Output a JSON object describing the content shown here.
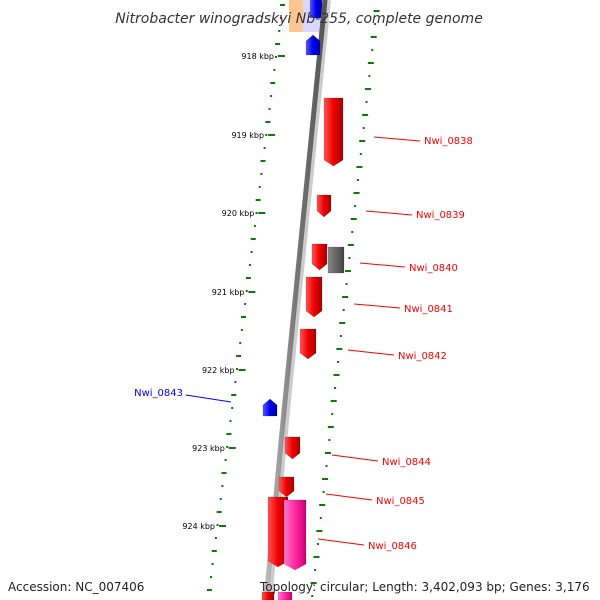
{
  "title": "Nitrobacter winogradskyi Nb-255, complete genome",
  "footer": {
    "accession": "Accession: NC_007406",
    "topology": "Topology: circular; Length: 3,402,093 bp; Genes: 3,176"
  },
  "colors": {
    "forward_gene": "#ff0000",
    "reverse_gene": "#0000ff",
    "gc_dots": "#0a7a0a",
    "backbone": "#808080",
    "hypothetical": "#606060",
    "rna": "#ff3399",
    "orange_feature": "#ff9933"
  },
  "scale_ticks": [
    {
      "label": "918 kbp",
      "kb": 918
    },
    {
      "label": "919 kbp",
      "kb": 919
    },
    {
      "label": "920 kbp",
      "kb": 920
    },
    {
      "label": "921 kbp",
      "kb": 921
    },
    {
      "label": "922 kbp",
      "kb": 922
    },
    {
      "label": "923 kbp",
      "kb": 923
    },
    {
      "label": "924 kbp",
      "kb": 924
    }
  ],
  "genes": [
    {
      "name": "Nwi_0838",
      "strand": "+"
    },
    {
      "name": "Nwi_0839",
      "strand": "+"
    },
    {
      "name": "Nwi_0840",
      "strand": "+"
    },
    {
      "name": "Nwi_0841",
      "strand": "+"
    },
    {
      "name": "Nwi_0842",
      "strand": "+"
    },
    {
      "name": "Nwi_0843",
      "strand": "-"
    },
    {
      "name": "Nwi_0844",
      "strand": "+"
    },
    {
      "name": "Nwi_0845",
      "strand": "+"
    },
    {
      "name": "Nwi_0846",
      "strand": "+"
    }
  ]
}
